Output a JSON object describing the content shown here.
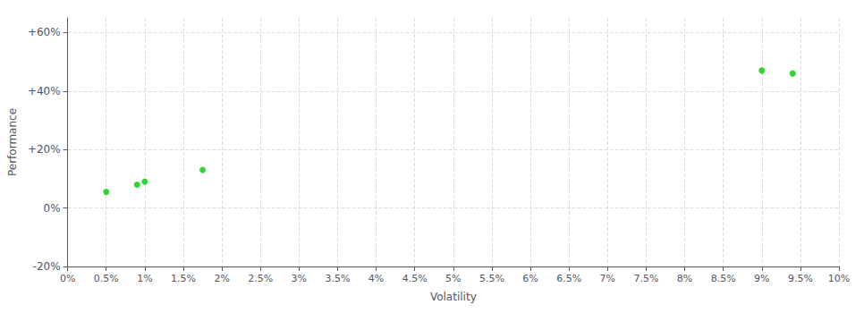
{
  "chart_data": {
    "type": "scatter",
    "xlabel": "Volatility",
    "ylabel": "Performance",
    "x": [
      0.005,
      0.009,
      0.01,
      0.0175,
      0.09,
      0.094
    ],
    "values": [
      0.055,
      0.08,
      0.09,
      0.13,
      0.47,
      0.46
    ],
    "color": "#00cc00",
    "xlim": [
      0.0,
      0.1
    ],
    "ylim": [
      -0.2,
      0.65
    ],
    "xticks": [
      {
        "value": 0.0,
        "label": "0%"
      },
      {
        "value": 0.005,
        "label": "0.5%"
      },
      {
        "value": 0.01,
        "label": "1%"
      },
      {
        "value": 0.015,
        "label": "1.5%"
      },
      {
        "value": 0.02,
        "label": "2%"
      },
      {
        "value": 0.025,
        "label": "2.5%"
      },
      {
        "value": 0.03,
        "label": "3%"
      },
      {
        "value": 0.035,
        "label": "3.5%"
      },
      {
        "value": 0.04,
        "label": "4%"
      },
      {
        "value": 0.045,
        "label": "4.5%"
      },
      {
        "value": 0.05,
        "label": "5%"
      },
      {
        "value": 0.055,
        "label": "5.5%"
      },
      {
        "value": 0.06,
        "label": "6%"
      },
      {
        "value": 0.065,
        "label": "6.5%"
      },
      {
        "value": 0.07,
        "label": "7%"
      },
      {
        "value": 0.075,
        "label": "7.5%"
      },
      {
        "value": 0.08,
        "label": "8%"
      },
      {
        "value": 0.085,
        "label": "8.5%"
      },
      {
        "value": 0.09,
        "label": "9%"
      },
      {
        "value": 0.095,
        "label": "9.5%"
      },
      {
        "value": 0.1,
        "label": "10%"
      }
    ],
    "yticks": [
      {
        "value": -0.2,
        "label": "-20%"
      },
      {
        "value": 0.0,
        "label": "0%"
      },
      {
        "value": 0.2,
        "label": "+20%"
      },
      {
        "value": 0.4,
        "label": "+40%"
      },
      {
        "value": 0.6,
        "label": "+60%"
      }
    ],
    "grid": true
  }
}
